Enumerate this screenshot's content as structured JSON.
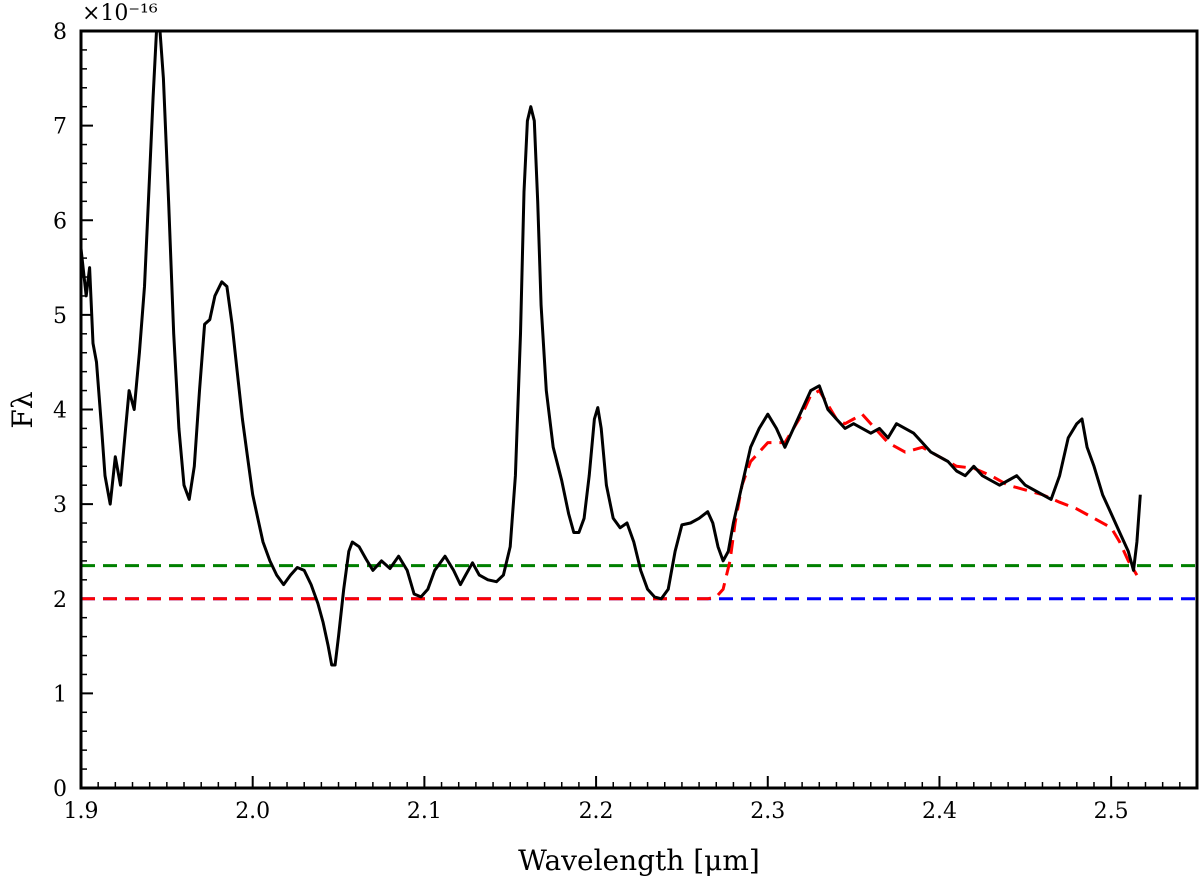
{
  "chart_data": {
    "type": "line",
    "xlabel": "Wavelength [μm]",
    "ylabel": "Fλ",
    "y_multiplier_label": "×10⁻¹⁶",
    "xlim": [
      1.9,
      2.55
    ],
    "ylim": [
      0,
      8
    ],
    "x_ticks": [
      1.9,
      2.0,
      2.1,
      2.2,
      2.3,
      2.4,
      2.5
    ],
    "x_tick_labels": [
      "1.9",
      "2.0",
      "2.1",
      "2.2",
      "2.3",
      "2.4",
      "2.5"
    ],
    "y_ticks": [
      0,
      1,
      2,
      3,
      4,
      5,
      6,
      7,
      8
    ],
    "y_tick_labels": [
      "0",
      "1",
      "2",
      "3",
      "4",
      "5",
      "6",
      "7",
      "8"
    ],
    "grid": false,
    "series": [
      {
        "color": "#000000",
        "style": "solid",
        "points": [
          [
            1.9,
            5.7
          ],
          [
            1.903,
            5.2
          ],
          [
            1.905,
            5.5
          ],
          [
            1.907,
            4.7
          ],
          [
            1.909,
            4.5
          ],
          [
            1.912,
            3.8
          ],
          [
            1.914,
            3.3
          ],
          [
            1.917,
            3.0
          ],
          [
            1.92,
            3.5
          ],
          [
            1.923,
            3.2
          ],
          [
            1.926,
            3.8
          ],
          [
            1.928,
            4.2
          ],
          [
            1.931,
            4.0
          ],
          [
            1.934,
            4.6
          ],
          [
            1.937,
            5.3
          ],
          [
            1.94,
            6.5
          ],
          [
            1.942,
            7.3
          ],
          [
            1.944,
            8.0
          ],
          [
            1.946,
            8.0
          ],
          [
            1.948,
            7.5
          ],
          [
            1.951,
            6.2
          ],
          [
            1.954,
            4.8
          ],
          [
            1.957,
            3.8
          ],
          [
            1.96,
            3.2
          ],
          [
            1.963,
            3.05
          ],
          [
            1.966,
            3.4
          ],
          [
            1.969,
            4.2
          ],
          [
            1.972,
            4.9
          ],
          [
            1.975,
            4.95
          ],
          [
            1.978,
            5.2
          ],
          [
            1.982,
            5.35
          ],
          [
            1.985,
            5.3
          ],
          [
            1.988,
            4.9
          ],
          [
            1.991,
            4.4
          ],
          [
            1.994,
            3.9
          ],
          [
            1.997,
            3.5
          ],
          [
            2.0,
            3.1
          ],
          [
            2.003,
            2.85
          ],
          [
            2.006,
            2.6
          ],
          [
            2.01,
            2.4
          ],
          [
            2.014,
            2.25
          ],
          [
            2.018,
            2.15
          ],
          [
            2.022,
            2.25
          ],
          [
            2.026,
            2.33
          ],
          [
            2.03,
            2.3
          ],
          [
            2.034,
            2.15
          ],
          [
            2.038,
            1.95
          ],
          [
            2.041,
            1.75
          ],
          [
            2.044,
            1.5
          ],
          [
            2.046,
            1.3
          ],
          [
            2.048,
            1.3
          ],
          [
            2.05,
            1.6
          ],
          [
            2.053,
            2.1
          ],
          [
            2.056,
            2.5
          ],
          [
            2.058,
            2.6
          ],
          [
            2.062,
            2.55
          ],
          [
            2.066,
            2.42
          ],
          [
            2.07,
            2.3
          ],
          [
            2.075,
            2.4
          ],
          [
            2.08,
            2.32
          ],
          [
            2.085,
            2.45
          ],
          [
            2.09,
            2.3
          ],
          [
            2.094,
            2.05
          ],
          [
            2.098,
            2.02
          ],
          [
            2.102,
            2.1
          ],
          [
            2.106,
            2.3
          ],
          [
            2.112,
            2.45
          ],
          [
            2.117,
            2.3
          ],
          [
            2.121,
            2.15
          ],
          [
            2.124,
            2.25
          ],
          [
            2.128,
            2.38
          ],
          [
            2.132,
            2.25
          ],
          [
            2.137,
            2.2
          ],
          [
            2.142,
            2.18
          ],
          [
            2.146,
            2.25
          ],
          [
            2.15,
            2.55
          ],
          [
            2.153,
            3.3
          ],
          [
            2.156,
            4.8
          ],
          [
            2.158,
            6.3
          ],
          [
            2.16,
            7.05
          ],
          [
            2.162,
            7.2
          ],
          [
            2.164,
            7.05
          ],
          [
            2.166,
            6.2
          ],
          [
            2.168,
            5.1
          ],
          [
            2.171,
            4.2
          ],
          [
            2.175,
            3.6
          ],
          [
            2.18,
            3.25
          ],
          [
            2.184,
            2.9
          ],
          [
            2.187,
            2.7
          ],
          [
            2.19,
            2.7
          ],
          [
            2.193,
            2.85
          ],
          [
            2.196,
            3.3
          ],
          [
            2.199,
            3.9
          ],
          [
            2.201,
            4.02
          ],
          [
            2.203,
            3.8
          ],
          [
            2.206,
            3.2
          ],
          [
            2.21,
            2.85
          ],
          [
            2.214,
            2.75
          ],
          [
            2.218,
            2.8
          ],
          [
            2.222,
            2.6
          ],
          [
            2.226,
            2.3
          ],
          [
            2.23,
            2.1
          ],
          [
            2.234,
            2.02
          ],
          [
            2.238,
            2.0
          ],
          [
            2.242,
            2.1
          ],
          [
            2.246,
            2.5
          ],
          [
            2.25,
            2.78
          ],
          [
            2.255,
            2.8
          ],
          [
            2.26,
            2.85
          ],
          [
            2.265,
            2.92
          ],
          [
            2.268,
            2.8
          ],
          [
            2.271,
            2.55
          ],
          [
            2.274,
            2.4
          ],
          [
            2.277,
            2.5
          ],
          [
            2.28,
            2.8
          ],
          [
            2.285,
            3.2
          ],
          [
            2.29,
            3.6
          ],
          [
            2.295,
            3.8
          ],
          [
            2.3,
            3.95
          ],
          [
            2.305,
            3.8
          ],
          [
            2.31,
            3.6
          ],
          [
            2.315,
            3.8
          ],
          [
            2.32,
            4.0
          ],
          [
            2.325,
            4.2
          ],
          [
            2.33,
            4.25
          ],
          [
            2.335,
            4.0
          ],
          [
            2.34,
            3.9
          ],
          [
            2.345,
            3.8
          ],
          [
            2.35,
            3.85
          ],
          [
            2.355,
            3.8
          ],
          [
            2.36,
            3.75
          ],
          [
            2.365,
            3.8
          ],
          [
            2.37,
            3.7
          ],
          [
            2.375,
            3.85
          ],
          [
            2.38,
            3.8
          ],
          [
            2.385,
            3.75
          ],
          [
            2.39,
            3.65
          ],
          [
            2.395,
            3.55
          ],
          [
            2.4,
            3.5
          ],
          [
            2.405,
            3.45
          ],
          [
            2.41,
            3.35
          ],
          [
            2.415,
            3.3
          ],
          [
            2.42,
            3.4
          ],
          [
            2.425,
            3.3
          ],
          [
            2.43,
            3.25
          ],
          [
            2.435,
            3.2
          ],
          [
            2.44,
            3.25
          ],
          [
            2.445,
            3.3
          ],
          [
            2.45,
            3.2
          ],
          [
            2.455,
            3.15
          ],
          [
            2.46,
            3.1
          ],
          [
            2.465,
            3.05
          ],
          [
            2.47,
            3.3
          ],
          [
            2.475,
            3.7
          ],
          [
            2.48,
            3.85
          ],
          [
            2.483,
            3.9
          ],
          [
            2.486,
            3.6
          ],
          [
            2.49,
            3.4
          ],
          [
            2.495,
            3.1
          ],
          [
            2.5,
            2.9
          ],
          [
            2.505,
            2.7
          ],
          [
            2.51,
            2.5
          ],
          [
            2.513,
            2.3
          ],
          [
            2.515,
            2.6
          ],
          [
            2.517,
            3.1
          ]
        ]
      },
      {
        "color": "#ff0000",
        "style": "dashed",
        "points": [
          [
            1.9,
            2.0
          ],
          [
            2.24,
            2.0
          ],
          [
            2.265,
            2.0
          ],
          [
            2.27,
            2.02
          ],
          [
            2.274,
            2.1
          ],
          [
            2.278,
            2.4
          ],
          [
            2.281,
            2.8
          ],
          [
            2.285,
            3.2
          ],
          [
            2.29,
            3.45
          ],
          [
            2.295,
            3.55
          ],
          [
            2.3,
            3.65
          ],
          [
            2.31,
            3.65
          ],
          [
            2.32,
            3.95
          ],
          [
            2.325,
            4.15
          ],
          [
            2.33,
            4.2
          ],
          [
            2.335,
            4.05
          ],
          [
            2.34,
            3.9
          ],
          [
            2.345,
            3.85
          ],
          [
            2.35,
            3.9
          ],
          [
            2.355,
            3.95
          ],
          [
            2.36,
            3.85
          ],
          [
            2.37,
            3.65
          ],
          [
            2.38,
            3.55
          ],
          [
            2.39,
            3.6
          ],
          [
            2.4,
            3.5
          ],
          [
            2.41,
            3.4
          ],
          [
            2.42,
            3.38
          ],
          [
            2.43,
            3.3
          ],
          [
            2.44,
            3.2
          ],
          [
            2.45,
            3.15
          ],
          [
            2.46,
            3.1
          ],
          [
            2.47,
            3.02
          ],
          [
            2.48,
            2.95
          ],
          [
            2.49,
            2.85
          ],
          [
            2.5,
            2.75
          ],
          [
            2.505,
            2.6
          ],
          [
            2.51,
            2.4
          ],
          [
            2.515,
            2.25
          ]
        ]
      },
      {
        "color": "#008000",
        "style": "dashed",
        "points": [
          [
            1.9,
            2.35
          ],
          [
            2.55,
            2.35
          ]
        ]
      },
      {
        "color": "#0000ff",
        "style": "dashed",
        "points": [
          [
            1.9,
            2.0
          ],
          [
            2.55,
            2.0
          ]
        ]
      }
    ]
  }
}
